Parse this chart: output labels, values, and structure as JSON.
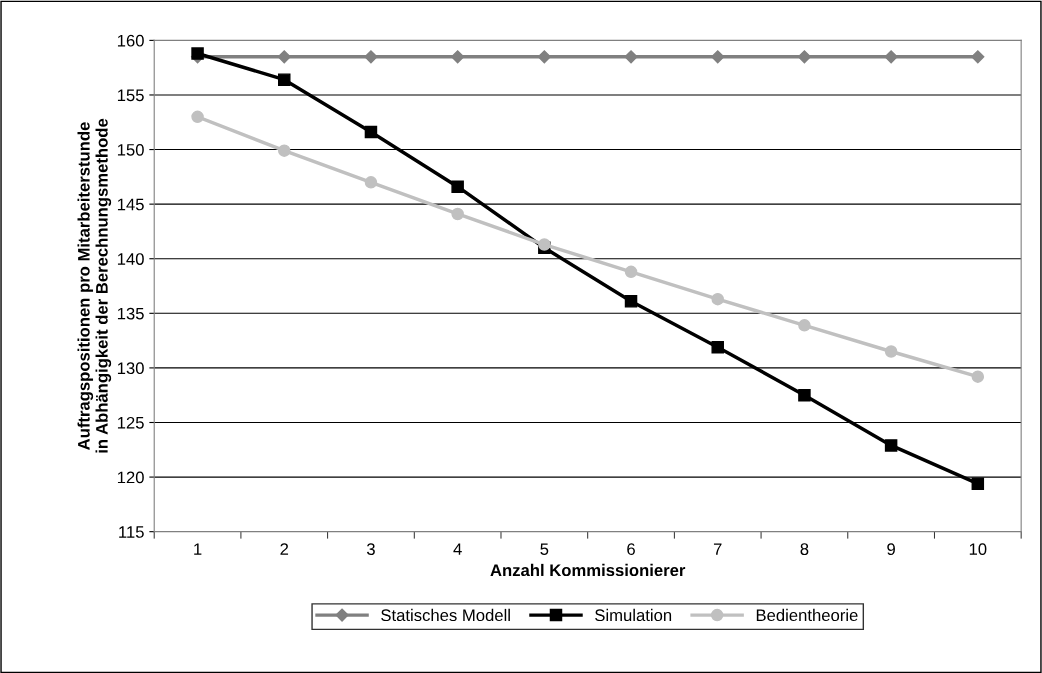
{
  "chart_data": {
    "type": "line",
    "xlabel": "Anzahl Kommissionierer",
    "ylabel": "Auftragspositionen pro Mitarbeiterstunde\nin Abhängigkeit der Berechnungsmethode",
    "categories": [
      "1",
      "2",
      "3",
      "4",
      "5",
      "6",
      "7",
      "8",
      "9",
      "10"
    ],
    "series": [
      {
        "name": "Statisches Modell",
        "color": "#808080",
        "marker": "diamond",
        "values": [
          158.5,
          158.5,
          158.5,
          158.5,
          158.5,
          158.5,
          158.5,
          158.5,
          158.5,
          158.5
        ]
      },
      {
        "name": "Simulation",
        "color": "#000000",
        "marker": "square",
        "values": [
          158.8,
          156.4,
          151.6,
          146.6,
          141.0,
          136.1,
          131.9,
          127.5,
          122.9,
          119.4
        ]
      },
      {
        "name": "Bedientheorie",
        "color": "#c0c0c0",
        "marker": "circle",
        "values": [
          153.0,
          149.9,
          147.0,
          144.1,
          141.3,
          138.8,
          136.3,
          133.9,
          131.5,
          129.2
        ]
      }
    ],
    "ylim": [
      115,
      160
    ],
    "yticks": [
      115,
      120,
      125,
      130,
      135,
      140,
      145,
      150,
      155,
      160
    ],
    "grid": "y",
    "legend": "bottom",
    "line_style": "solid"
  }
}
